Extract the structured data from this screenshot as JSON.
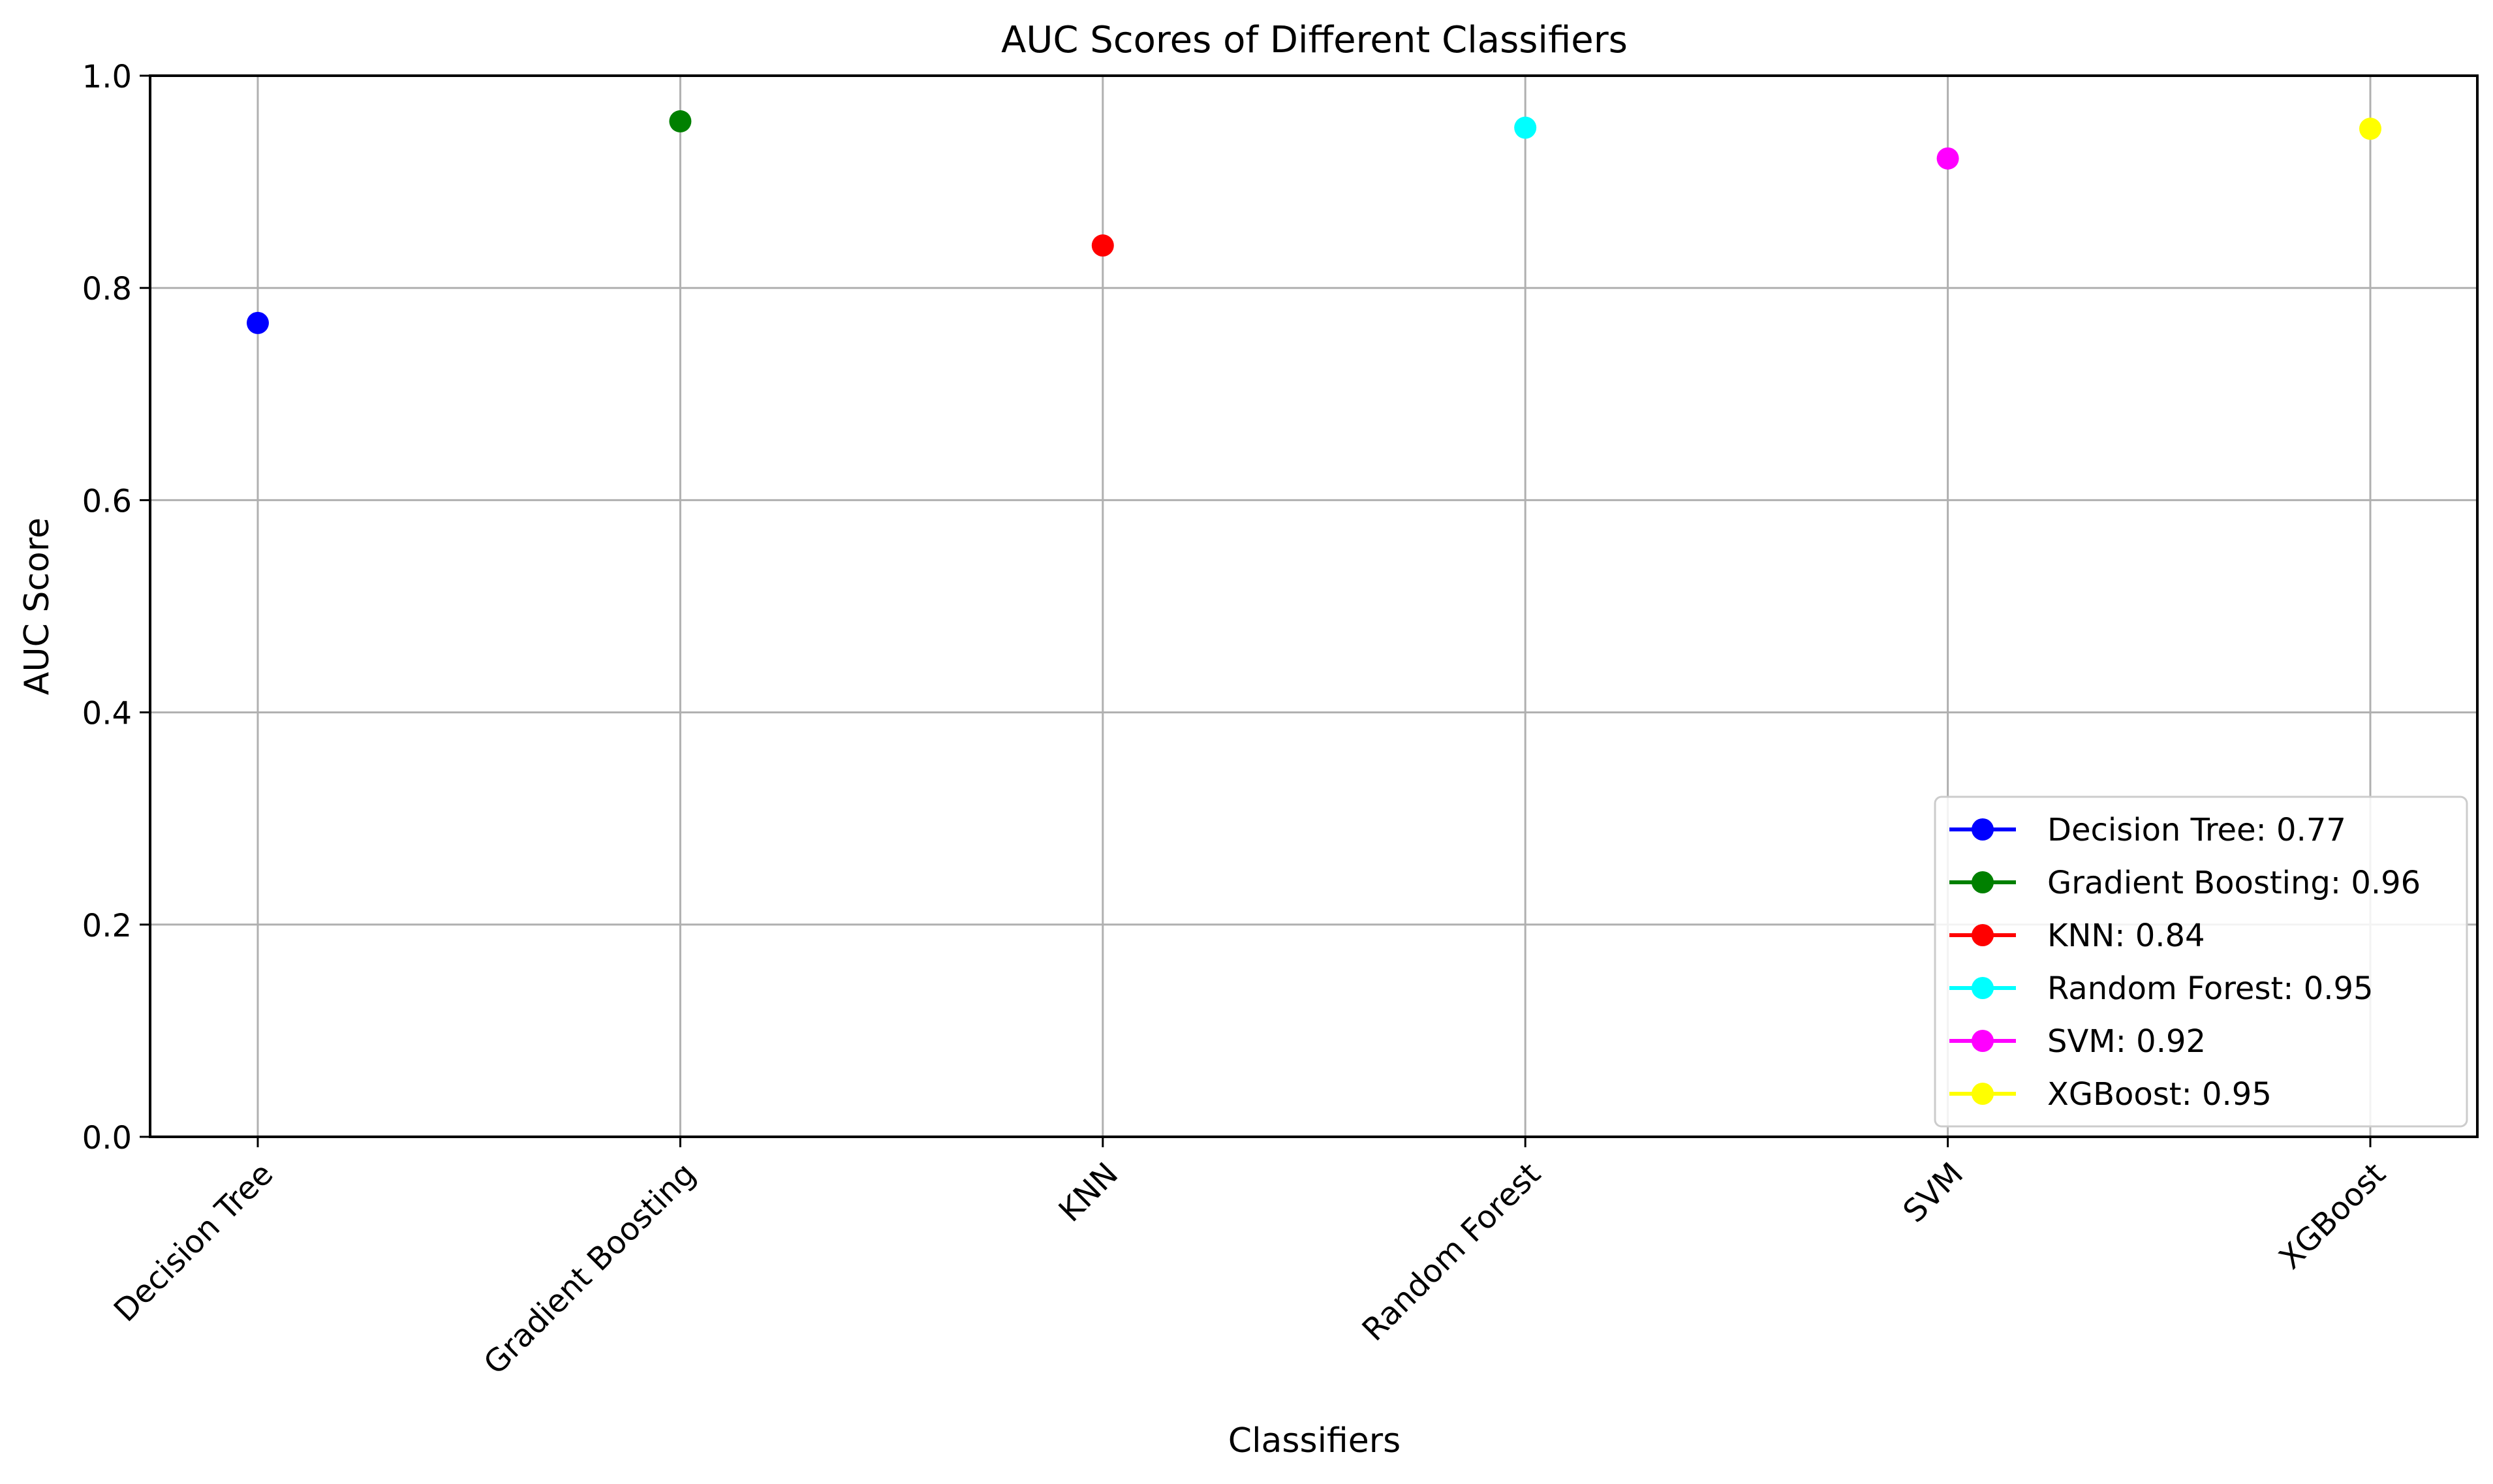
{
  "chart_data": {
    "type": "scatter",
    "title": "AUC Scores of Different Classifiers",
    "xlabel": "Classifiers",
    "ylabel": "AUC Score",
    "categories": [
      "Decision Tree",
      "Gradient Boosting",
      "KNN",
      "Random Forest",
      "SVM",
      "XGBoost"
    ],
    "ylim": [
      0.0,
      1.0
    ],
    "yticks": [
      "0.0",
      "0.2",
      "0.4",
      "0.6",
      "0.8",
      "1.0"
    ],
    "grid": true,
    "legend_position": "bottom-right",
    "series": [
      {
        "name": "Decision Tree: 0.77",
        "category": "Decision Tree",
        "value": 0.767,
        "color": "#0000ff"
      },
      {
        "name": "Gradient Boosting: 0.96",
        "category": "Gradient Boosting",
        "value": 0.957,
        "color": "#008000"
      },
      {
        "name": "KNN: 0.84",
        "category": "KNN",
        "value": 0.84,
        "color": "#ff0000"
      },
      {
        "name": "Random Forest: 0.95",
        "category": "Random Forest",
        "value": 0.951,
        "color": "#00ffff"
      },
      {
        "name": "SVM: 0.92",
        "category": "SVM",
        "value": 0.922,
        "color": "#ff00ff"
      },
      {
        "name": "XGBoost: 0.95",
        "category": "XGBoost",
        "value": 0.95,
        "color": "#ffff00"
      }
    ]
  }
}
